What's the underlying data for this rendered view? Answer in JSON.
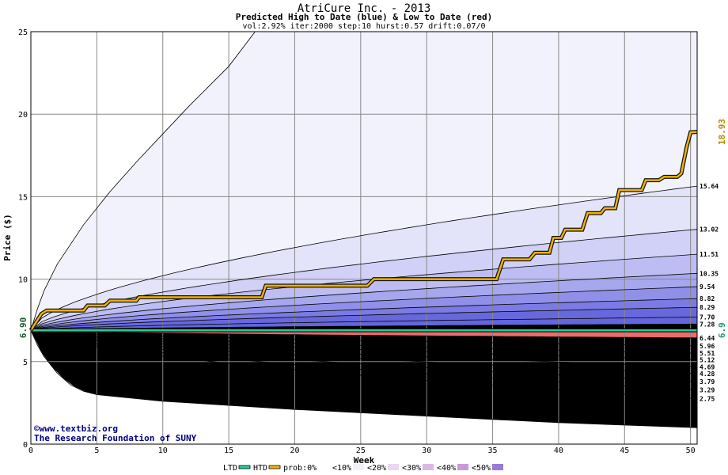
{
  "chart_data": {
    "type": "area",
    "title": "AtriCure Inc. - 2013",
    "subtitle": "Predicted High to Date (blue) &  Low to Date (red)",
    "params": "vol:2.92% iter:2000 step:10 hurst:0.57 drift:0.07/0",
    "xlabel": "Week",
    "ylabel": "Price ($)",
    "xlim": [
      0,
      50.5
    ],
    "ylim": [
      0,
      25
    ],
    "x_ticks": [
      0,
      5,
      10,
      15,
      20,
      25,
      30,
      35,
      40,
      45,
      50
    ],
    "y_ticks": [
      0,
      5,
      10,
      15,
      20,
      25
    ],
    "grid": true,
    "start_price": 6.9,
    "start_label": "6.90",
    "ltd_label": "6.9",
    "htd_label": "18.93",
    "high_percentile_finals": [
      15.64,
      13.02,
      11.51,
      10.35,
      9.54,
      8.82,
      8.29,
      7.7,
      7.28
    ],
    "high_percentile_labels": [
      "15.64",
      "13.02",
      "11.51",
      "10.35",
      "9.54",
      "8.82",
      "8.29",
      "7.70",
      "7.28"
    ],
    "high_extreme": {
      "x": [
        0,
        0.5,
        1,
        2,
        4,
        6,
        8,
        10,
        12,
        15,
        17
      ],
      "y": [
        6.9,
        8.2,
        9.3,
        10.9,
        13.3,
        15.3,
        17.1,
        18.8,
        20.5,
        22.9,
        25
      ]
    },
    "low_percentile_finals": [
      6.44,
      5.96,
      5.51,
      5.12,
      4.69,
      4.28,
      3.79,
      3.29,
      2.75
    ],
    "low_percentile_labels": [
      "6.44",
      "5.96",
      "5.51",
      "5.12",
      "4.69",
      "4.28",
      "3.79",
      "3.29",
      "2.75"
    ],
    "low_extreme": {
      "x": [
        0,
        0.5,
        1,
        2,
        3,
        4,
        5,
        10,
        20,
        30,
        40,
        50.5
      ],
      "y": [
        6.9,
        6.0,
        5.3,
        4.3,
        3.6,
        3.2,
        3.0,
        2.6,
        2.1,
        1.7,
        1.3,
        1.0
      ]
    },
    "htd_path": {
      "x": [
        0,
        0.8,
        1.2,
        4,
        4.3,
        5.6,
        6,
        8,
        8.2,
        17.5,
        17.8,
        25.5,
        26,
        35.3,
        35.8,
        37.8,
        38.2,
        39.3,
        39.6,
        40.2,
        40.5,
        41.8,
        42.2,
        43.2,
        43.5,
        44.3,
        44.6,
        46.3,
        46.6,
        47.6,
        48,
        49,
        49.3,
        49.7,
        50,
        50.5
      ],
      "y": [
        6.9,
        7.9,
        8.1,
        8.1,
        8.4,
        8.4,
        8.7,
        8.7,
        8.9,
        8.9,
        9.6,
        9.6,
        10.0,
        10.0,
        11.2,
        11.2,
        11.6,
        11.6,
        12.5,
        12.5,
        13.0,
        13.0,
        14.0,
        14.0,
        14.3,
        14.3,
        15.4,
        15.4,
        16.0,
        16.0,
        16.2,
        16.2,
        16.4,
        18.0,
        18.9,
        18.93
      ]
    },
    "ltd_value": 6.9,
    "band_colors": {
      "high": [
        "#f2f2fd",
        "#e3e3fa",
        "#d1d1f7",
        "#bdbdf3",
        "#a7a7ee",
        "#9090e8",
        "#7b7be3",
        "#6868dd",
        "#6565dc"
      ],
      "low": [
        "#fdf0f0",
        "#fbe1e1",
        "#f9cdcd",
        "#f7b8b8",
        "#f5a4a4",
        "#f38f8f",
        "#f17c7c",
        "#f06b6b",
        "#ef6a6a"
      ]
    },
    "htd_color": "#f0b400",
    "ltd_color": "#20d090",
    "htd_label_color": "#b58a00",
    "ltd_label_color": "#1a9a6a",
    "legend": [
      {
        "label": "LTD",
        "kind": "line",
        "color": "#20d090"
      },
      {
        "label": "HTD",
        "kind": "line",
        "color": "#f0b400"
      },
      {
        "label": "prob:0%",
        "kind": "swatch",
        "color": "#ffffff"
      },
      {
        "label": "<10%",
        "kind": "swatch",
        "color": "#f4f0f8"
      },
      {
        "label": "<20%",
        "kind": "swatch",
        "color": "#e9d8ee"
      },
      {
        "label": "<30%",
        "kind": "swatch",
        "color": "#d9b8e3"
      },
      {
        "label": "<40%",
        "kind": "swatch",
        "color": "#c89ad6"
      },
      {
        "label": "<50%",
        "kind": "swatch",
        "color": "#9a7ad8"
      }
    ]
  },
  "watermark": {
    "line1": "©www.textbiz.org",
    "line2": "The Research Foundation of SUNY"
  }
}
